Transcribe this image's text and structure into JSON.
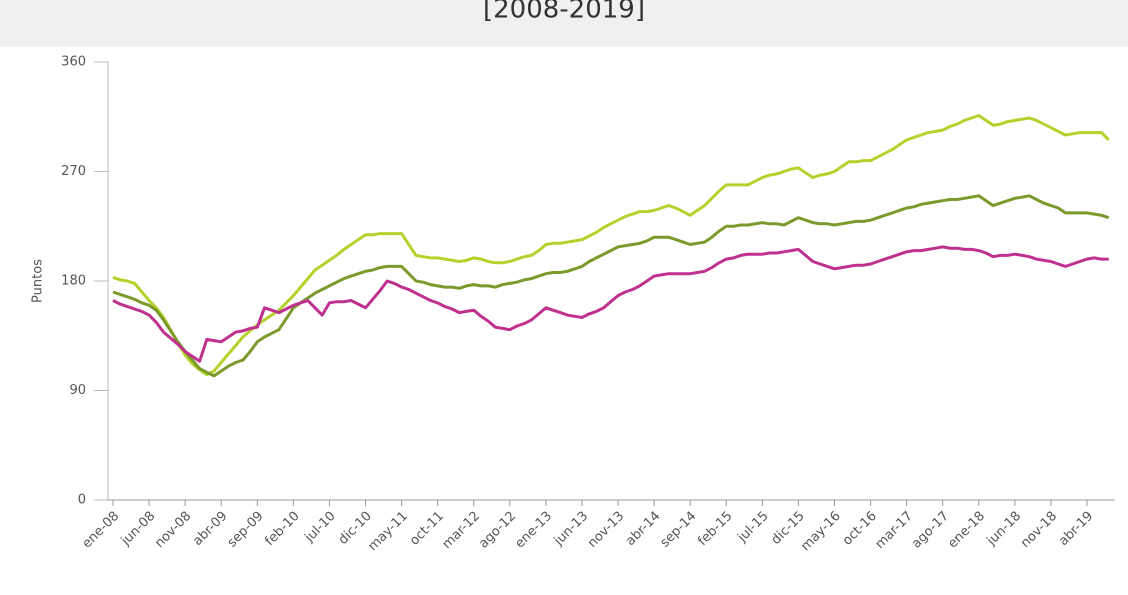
{
  "chart_data": {
    "type": "line",
    "title": "[2008-2019]",
    "y_label": "Puntos",
    "categories": [
      "ene-08",
      null,
      null,
      null,
      null,
      "jun-08",
      null,
      null,
      null,
      null,
      "nov-08",
      null,
      null,
      null,
      null,
      "abr-09",
      null,
      null,
      null,
      null,
      "sep-09",
      null,
      null,
      null,
      null,
      "feb-10",
      null,
      null,
      null,
      null,
      "jul-10",
      null,
      null,
      null,
      null,
      "dic-10",
      null,
      null,
      null,
      null,
      "may-11",
      null,
      null,
      null,
      null,
      "oct-11",
      null,
      null,
      null,
      null,
      "mar-12",
      null,
      null,
      null,
      null,
      "ago-12",
      null,
      null,
      null,
      null,
      "ene-13",
      null,
      null,
      null,
      null,
      "jun-13",
      null,
      null,
      null,
      null,
      "nov-13",
      null,
      null,
      null,
      null,
      "abr-14",
      null,
      null,
      null,
      null,
      "sep-14",
      null,
      null,
      null,
      null,
      "feb-15",
      null,
      null,
      null,
      null,
      "jul-15",
      null,
      null,
      null,
      null,
      "dic-15",
      null,
      null,
      null,
      null,
      "may-16",
      null,
      null,
      null,
      null,
      "oct-16",
      null,
      null,
      null,
      null,
      "mar-17",
      null,
      null,
      null,
      null,
      "ago-17",
      null,
      null,
      null,
      null,
      "ene-18",
      null,
      null,
      null,
      null,
      "jun-18",
      null,
      null,
      null,
      null,
      "nov-18",
      null,
      null,
      null,
      null,
      "abr-19",
      null,
      null,
      null
    ],
    "series": [
      {
        "color": "#b3d32c",
        "values": [
          183,
          181,
          180,
          178,
          171,
          164,
          158,
          150,
          140,
          129,
          119,
          112,
          107,
          103,
          106,
          113,
          120,
          127,
          134,
          139,
          144,
          148,
          152,
          156,
          162,
          168,
          175,
          182,
          189,
          193,
          197,
          201,
          206,
          210,
          214,
          218,
          218,
          219,
          219,
          219,
          219,
          210,
          201,
          200,
          199,
          199,
          198,
          197,
          196,
          197,
          199,
          198,
          196,
          195,
          195,
          196,
          198,
          200,
          201,
          205,
          210,
          211,
          211,
          212,
          213,
          214,
          217,
          220,
          224,
          227,
          230,
          233,
          235,
          237,
          237,
          238,
          240,
          242,
          240,
          237,
          234,
          238,
          242,
          248,
          254,
          259,
          259,
          259,
          259,
          262,
          265,
          267,
          268,
          270,
          272,
          273,
          269,
          265,
          267,
          268,
          270,
          274,
          278,
          278,
          279,
          279,
          282,
          285,
          288,
          292,
          296,
          298,
          300,
          302,
          303,
          304,
          307,
          309,
          312,
          314,
          316,
          312,
          308,
          309,
          311,
          312,
          313,
          314,
          312,
          309,
          306,
          303,
          300,
          301,
          302,
          302,
          302,
          302,
          296
        ]
      },
      {
        "color": "#7a9b2c",
        "values": [
          171,
          169,
          167,
          165,
          162,
          160,
          156,
          148,
          139,
          130,
          122,
          115,
          108,
          105,
          102,
          106,
          110,
          113,
          115,
          122,
          130,
          134,
          137,
          140,
          149,
          158,
          162,
          166,
          170,
          173,
          176,
          179,
          182,
          184,
          186,
          188,
          189,
          191,
          192,
          192,
          192,
          186,
          180,
          179,
          177,
          176,
          175,
          175,
          174,
          176,
          177,
          176,
          176,
          175,
          177,
          178,
          179,
          181,
          182,
          184,
          186,
          187,
          187,
          188,
          190,
          192,
          196,
          199,
          202,
          205,
          208,
          209,
          210,
          211,
          213,
          216,
          216,
          216,
          214,
          212,
          210,
          211,
          212,
          216,
          221,
          225,
          225,
          226,
          226,
          227,
          228,
          227,
          227,
          226,
          229,
          232,
          230,
          228,
          227,
          227,
          226,
          227,
          228,
          229,
          229,
          230,
          232,
          234,
          236,
          238,
          240,
          241,
          243,
          244,
          245,
          246,
          247,
          247,
          248,
          249,
          250,
          246,
          242,
          244,
          246,
          248,
          249,
          250,
          247,
          244,
          242,
          240,
          236,
          236,
          236,
          236,
          235,
          234,
          232
        ]
      },
      {
        "color": "#c0318f",
        "values": [
          164,
          161,
          159,
          157,
          155,
          152,
          146,
          138,
          133,
          128,
          122,
          118,
          114,
          132,
          131,
          130,
          134,
          138,
          139,
          141,
          142,
          158,
          156,
          154,
          157,
          160,
          162,
          164,
          158,
          152,
          162,
          163,
          163,
          164,
          161,
          158,
          165,
          172,
          180,
          178,
          175,
          173,
          170,
          167,
          164,
          162,
          159,
          157,
          154,
          155,
          156,
          151,
          147,
          142,
          141,
          140,
          143,
          145,
          148,
          153,
          158,
          156,
          154,
          152,
          151,
          150,
          153,
          155,
          158,
          163,
          168,
          171,
          173,
          176,
          180,
          184,
          185,
          186,
          186,
          186,
          186,
          187,
          188,
          191,
          195,
          198,
          199,
          201,
          202,
          202,
          202,
          203,
          203,
          204,
          205,
          206,
          201,
          196,
          194,
          192,
          190,
          191,
          192,
          193,
          193,
          194,
          196,
          198,
          200,
          202,
          204,
          205,
          205,
          206,
          207,
          208,
          207,
          207,
          206,
          206,
          205,
          203,
          200,
          201,
          201,
          202,
          201,
          200,
          198,
          197,
          196,
          194,
          192,
          194,
          196,
          198,
          199,
          198,
          198
        ]
      }
    ],
    "ylim": [
      0,
      360
    ],
    "yticks": [
      0,
      90,
      180,
      270,
      360
    ],
    "grid": false
  }
}
